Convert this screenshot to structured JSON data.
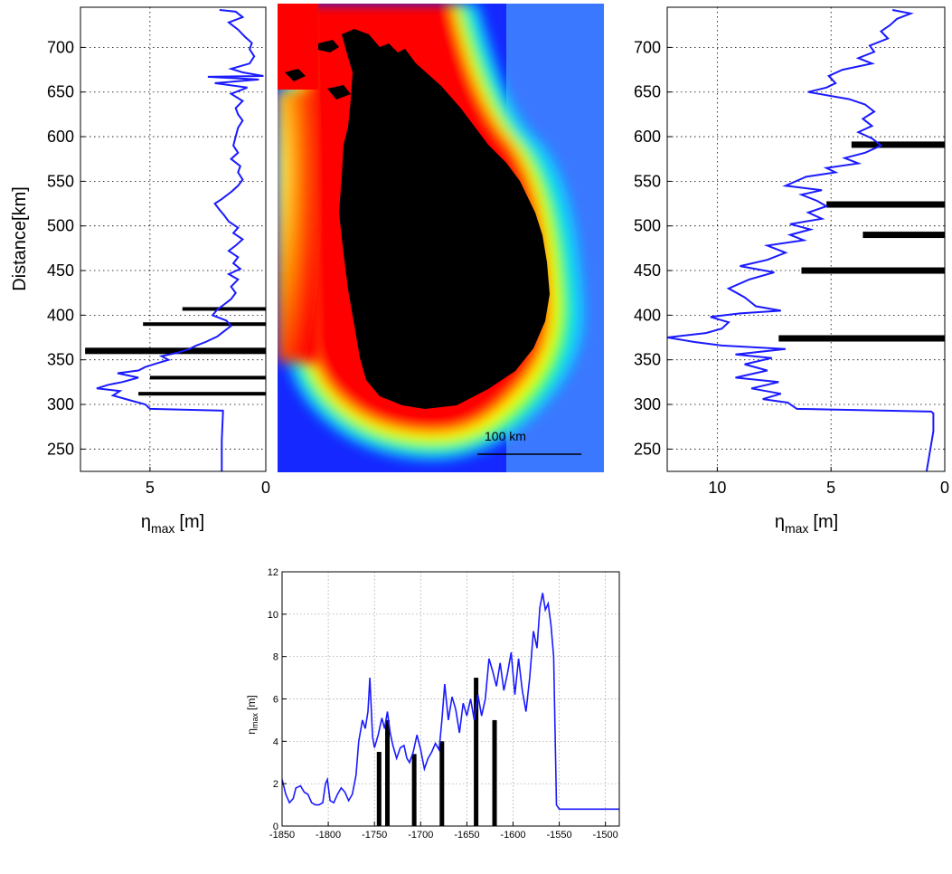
{
  "chart_data": [
    {
      "type": "line",
      "ylabel": "Distance[km]",
      "xlabel_main": "η",
      "xlabel_sub": "max",
      "xlabel_unit": "[m]",
      "xlim": [
        8,
        0
      ],
      "ylim": [
        225,
        745
      ],
      "x_ticks": [
        5,
        0
      ],
      "y_ticks": [
        250,
        300,
        350,
        400,
        450,
        500,
        550,
        600,
        650,
        700
      ],
      "grid": true,
      "line_color": "#1a1aff",
      "line": [
        [
          1.9,
          225
        ],
        [
          1.9,
          260
        ],
        [
          1.85,
          290
        ],
        [
          1.85,
          293
        ],
        [
          5.0,
          295
        ],
        [
          5.2,
          300
        ],
        [
          5.9,
          305
        ],
        [
          6.6,
          310
        ],
        [
          6.3,
          315
        ],
        [
          7.3,
          318
        ],
        [
          6.8,
          322
        ],
        [
          6.2,
          325
        ],
        [
          5.5,
          330
        ],
        [
          6.4,
          335
        ],
        [
          5.5,
          338
        ],
        [
          5.2,
          342
        ],
        [
          4.7,
          346
        ],
        [
          4.2,
          350
        ],
        [
          4.5,
          354
        ],
        [
          3.8,
          358
        ],
        [
          3.3,
          362
        ],
        [
          3.0,
          366
        ],
        [
          2.6,
          370
        ],
        [
          2.1,
          376
        ],
        [
          1.8,
          382
        ],
        [
          1.5,
          388
        ],
        [
          1.7,
          394
        ],
        [
          2.3,
          400
        ],
        [
          2.1,
          406
        ],
        [
          1.8,
          412
        ],
        [
          1.5,
          418
        ],
        [
          1.3,
          425
        ],
        [
          1.5,
          432
        ],
        [
          1.2,
          440
        ],
        [
          1.6,
          446
        ],
        [
          1.1,
          452
        ],
        [
          1.4,
          458
        ],
        [
          1.2,
          465
        ],
        [
          1.6,
          472
        ],
        [
          1.3,
          478
        ],
        [
          1.0,
          485
        ],
        [
          1.4,
          492
        ],
        [
          1.2,
          498
        ],
        [
          1.6,
          505
        ],
        [
          1.8,
          512
        ],
        [
          2.0,
          518
        ],
        [
          2.2,
          525
        ],
        [
          1.9,
          530
        ],
        [
          1.5,
          538
        ],
        [
          1.2,
          545
        ],
        [
          1.0,
          552
        ],
        [
          1.2,
          560
        ],
        [
          1.1,
          567
        ],
        [
          1.5,
          575
        ],
        [
          1.2,
          582
        ],
        [
          1.4,
          590
        ],
        [
          1.3,
          600
        ],
        [
          1.2,
          610
        ],
        [
          1.0,
          618
        ],
        [
          1.2,
          625
        ],
        [
          1.3,
          632
        ],
        [
          1.0,
          640
        ],
        [
          1.5,
          648
        ],
        [
          0.8,
          655
        ],
        [
          2.2,
          660
        ],
        [
          0.3,
          664
        ],
        [
          2.5,
          667
        ],
        [
          0.1,
          668
        ],
        [
          1.0,
          672
        ],
        [
          1.5,
          676
        ],
        [
          0.7,
          682
        ],
        [
          0.5,
          690
        ],
        [
          0.7,
          698
        ],
        [
          0.6,
          705
        ],
        [
          0.9,
          712
        ],
        [
          1.2,
          720
        ],
        [
          1.6,
          728
        ],
        [
          1.0,
          734
        ],
        [
          1.3,
          740
        ],
        [
          2.0,
          742
        ]
      ],
      "bars": [
        [
          3.6,
          407
        ],
        [
          5.3,
          390
        ],
        [
          7.8,
          360
        ],
        [
          5.0,
          330
        ],
        [
          5.5,
          312
        ]
      ]
    },
    {
      "type": "map",
      "scale_label": "100 km"
    },
    {
      "type": "line",
      "xlabel_main": "η",
      "xlabel_sub": "max",
      "xlabel_unit": "[m]",
      "xlim": [
        12.2,
        0
      ],
      "ylim": [
        225,
        745
      ],
      "x_ticks": [
        10,
        5,
        0
      ],
      "y_ticks": [
        250,
        300,
        350,
        400,
        450,
        500,
        550,
        600,
        650,
        700
      ],
      "grid": true,
      "line_color": "#1a1aff",
      "line": [
        [
          0.8,
          225
        ],
        [
          0.5,
          270
        ],
        [
          0.5,
          290
        ],
        [
          0.6,
          292
        ],
        [
          6.5,
          295
        ],
        [
          6.9,
          302
        ],
        [
          8.0,
          306
        ],
        [
          7.2,
          312
        ],
        [
          8.5,
          318
        ],
        [
          7.3,
          325
        ],
        [
          9.2,
          330
        ],
        [
          7.8,
          338
        ],
        [
          8.8,
          345
        ],
        [
          7.6,
          352
        ],
        [
          9.2,
          356
        ],
        [
          7.0,
          362
        ],
        [
          9.8,
          366
        ],
        [
          11.0,
          370
        ],
        [
          12.2,
          375
        ],
        [
          10.5,
          380
        ],
        [
          9.8,
          385
        ],
        [
          9.5,
          392
        ],
        [
          10.3,
          398
        ],
        [
          9.0,
          402
        ],
        [
          7.2,
          405
        ],
        [
          8.3,
          410
        ],
        [
          8.8,
          420
        ],
        [
          9.5,
          430
        ],
        [
          8.6,
          440
        ],
        [
          7.5,
          448
        ],
        [
          9.0,
          455
        ],
        [
          7.8,
          462
        ],
        [
          7.0,
          470
        ],
        [
          7.8,
          478
        ],
        [
          6.2,
          484
        ],
        [
          6.8,
          490
        ],
        [
          5.9,
          496
        ],
        [
          6.8,
          502
        ],
        [
          5.4,
          508
        ],
        [
          6.0,
          515
        ],
        [
          5.2,
          522
        ],
        [
          5.6,
          528
        ],
        [
          6.3,
          535
        ],
        [
          5.4,
          540
        ],
        [
          7.0,
          545
        ],
        [
          6.1,
          555
        ],
        [
          4.8,
          560
        ],
        [
          5.2,
          565
        ],
        [
          3.8,
          570
        ],
        [
          4.4,
          576
        ],
        [
          3.5,
          582
        ],
        [
          2.8,
          590
        ],
        [
          3.2,
          598
        ],
        [
          3.8,
          605
        ],
        [
          3.2,
          612
        ],
        [
          3.6,
          620
        ],
        [
          3.1,
          628
        ],
        [
          3.5,
          636
        ],
        [
          4.2,
          642
        ],
        [
          6.0,
          650
        ],
        [
          5.2,
          655
        ],
        [
          4.8,
          660
        ],
        [
          5.1,
          668
        ],
        [
          4.5,
          675
        ],
        [
          3.2,
          682
        ],
        [
          3.8,
          688
        ],
        [
          3.1,
          695
        ],
        [
          3.3,
          702
        ],
        [
          2.5,
          710
        ],
        [
          2.8,
          718
        ],
        [
          2.4,
          725
        ],
        [
          2.1,
          732
        ],
        [
          1.5,
          738
        ],
        [
          2.3,
          742
        ]
      ],
      "bars": [
        [
          4.1,
          591
        ],
        [
          5.2,
          524
        ],
        [
          3.6,
          490
        ],
        [
          6.3,
          450
        ],
        [
          7.3,
          374
        ]
      ]
    },
    {
      "type": "line",
      "ylabel_main": "η",
      "ylabel_sub": "max",
      "ylabel_unit": "[m]",
      "xlim": [
        -1850,
        -1485
      ],
      "ylim": [
        0,
        12
      ],
      "x_ticks": [
        -1850,
        -1800,
        -1750,
        -1700,
        -1650,
        -1600,
        -1550,
        -1500
      ],
      "y_ticks": [
        0,
        2,
        4,
        6,
        8,
        10,
        12
      ],
      "grid": true,
      "line_color": "#1a1aff",
      "line": [
        [
          -1850,
          2.2
        ],
        [
          -1846,
          1.5
        ],
        [
          -1842,
          1.1
        ],
        [
          -1838,
          1.3
        ],
        [
          -1835,
          1.8
        ],
        [
          -1830,
          1.9
        ],
        [
          -1826,
          1.6
        ],
        [
          -1822,
          1.5
        ],
        [
          -1818,
          1.1
        ],
        [
          -1814,
          1.0
        ],
        [
          -1810,
          1.0
        ],
        [
          -1806,
          1.1
        ],
        [
          -1803,
          2.0
        ],
        [
          -1801,
          2.2
        ],
        [
          -1798,
          1.2
        ],
        [
          -1794,
          1.1
        ],
        [
          -1790,
          1.5
        ],
        [
          -1786,
          1.8
        ],
        [
          -1782,
          1.6
        ],
        [
          -1778,
          1.2
        ],
        [
          -1774,
          1.5
        ],
        [
          -1770,
          2.4
        ],
        [
          -1767,
          4.0
        ],
        [
          -1763,
          5.0
        ],
        [
          -1760,
          4.6
        ],
        [
          -1757,
          5.4
        ],
        [
          -1755,
          7.0
        ],
        [
          -1752,
          4.2
        ],
        [
          -1750,
          3.7
        ],
        [
          -1746,
          4.3
        ],
        [
          -1742,
          5.1
        ],
        [
          -1739,
          4.6
        ],
        [
          -1736,
          5.4
        ],
        [
          -1733,
          4.4
        ],
        [
          -1730,
          3.8
        ],
        [
          -1726,
          3.2
        ],
        [
          -1722,
          3.7
        ],
        [
          -1718,
          3.8
        ],
        [
          -1715,
          3.2
        ],
        [
          -1712,
          3.0
        ],
        [
          -1708,
          3.5
        ],
        [
          -1704,
          4.3
        ],
        [
          -1700,
          3.6
        ],
        [
          -1696,
          2.7
        ],
        [
          -1692,
          3.2
        ],
        [
          -1688,
          3.5
        ],
        [
          -1684,
          3.9
        ],
        [
          -1680,
          3.6
        ],
        [
          -1677,
          5.0
        ],
        [
          -1674,
          6.7
        ],
        [
          -1670,
          5.0
        ],
        [
          -1666,
          6.1
        ],
        [
          -1662,
          5.5
        ],
        [
          -1658,
          4.4
        ],
        [
          -1654,
          5.8
        ],
        [
          -1650,
          5.2
        ],
        [
          -1646,
          6.0
        ],
        [
          -1642,
          5.0
        ],
        [
          -1638,
          6.2
        ],
        [
          -1634,
          5.2
        ],
        [
          -1630,
          6.0
        ],
        [
          -1626,
          7.9
        ],
        [
          -1622,
          7.3
        ],
        [
          -1618,
          6.6
        ],
        [
          -1614,
          7.7
        ],
        [
          -1610,
          6.4
        ],
        [
          -1606,
          7.2
        ],
        [
          -1602,
          8.2
        ],
        [
          -1598,
          6.2
        ],
        [
          -1594,
          7.9
        ],
        [
          -1590,
          6.4
        ],
        [
          -1586,
          5.4
        ],
        [
          -1582,
          7.0
        ],
        [
          -1578,
          9.2
        ],
        [
          -1574,
          8.4
        ],
        [
          -1571,
          10.3
        ],
        [
          -1568,
          11.0
        ],
        [
          -1565,
          10.2
        ],
        [
          -1562,
          10.5
        ],
        [
          -1559,
          9.5
        ],
        [
          -1556,
          8.0
        ],
        [
          -1553,
          1.0
        ],
        [
          -1550,
          0.8
        ],
        [
          -1540,
          0.8
        ],
        [
          -1510,
          0.8
        ],
        [
          -1485,
          0.8
        ]
      ],
      "bars": [
        [
          -1745,
          3.5
        ],
        [
          -1736,
          5.0
        ],
        [
          -1707,
          3.4
        ],
        [
          -1677,
          4.0
        ],
        [
          -1640,
          7.0
        ],
        [
          -1620,
          5.0
        ]
      ]
    }
  ]
}
